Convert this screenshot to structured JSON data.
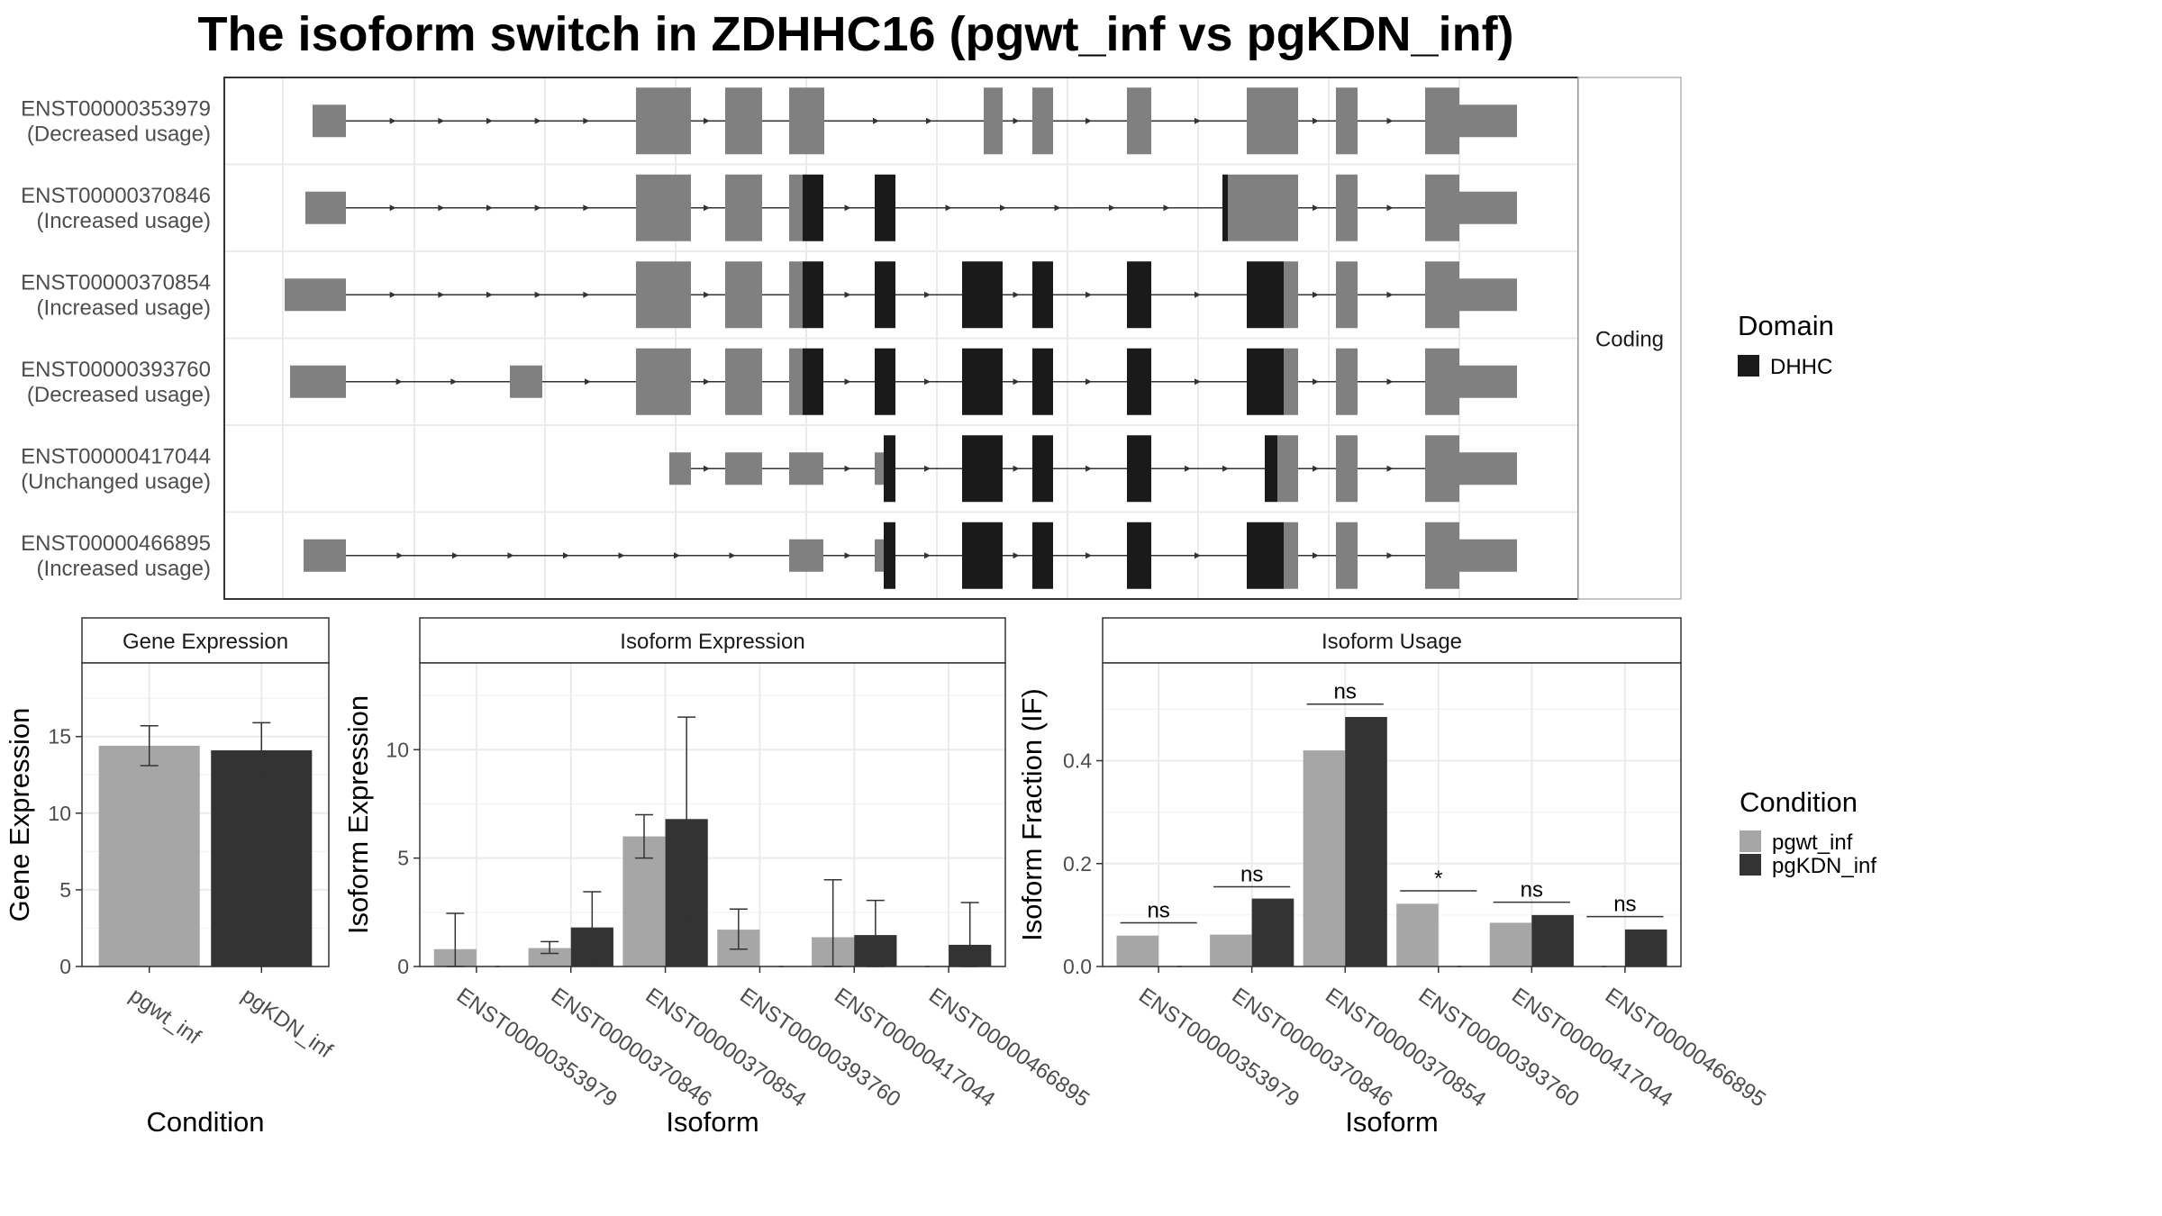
{
  "title": "The isoform switch in ZDHHC16 (pgwt_inf vs pgKDN_inf)",
  "colors": {
    "utr_or_noncoding": "#808080",
    "domain_dhhc": "#1a1a1a",
    "pgwt_inf": "#a6a6a6",
    "pgKDN_inf": "#333333",
    "strip_bg": "#ffffff",
    "grid": "#ebebeb",
    "panel_border": "#333333"
  },
  "transcript_panel": {
    "strip_label": "Coding",
    "rows": [
      {
        "id": "ENST00000353979",
        "usage": "(Decreased usage)"
      },
      {
        "id": "ENST00000370846",
        "usage": "(Increased usage)"
      },
      {
        "id": "ENST00000370854",
        "usage": "(Increased usage)"
      },
      {
        "id": "ENST00000393760",
        "usage": "(Decreased usage)"
      },
      {
        "id": "ENST00000417044",
        "usage": "(Unchanged usage)"
      },
      {
        "id": "ENST00000466895",
        "usage": "(Increased usage)"
      }
    ]
  },
  "domain_legend": {
    "title": "Domain",
    "items": [
      {
        "label": "DHHC",
        "color": "#1a1a1a"
      }
    ]
  },
  "condition_legend": {
    "title": "Condition",
    "items": [
      {
        "label": "pgwt_inf",
        "color": "#a6a6a6"
      },
      {
        "label": "pgKDN_inf",
        "color": "#333333"
      }
    ]
  },
  "chart_data": [
    {
      "type": "bar",
      "title": "Gene Expression",
      "xlabel": "Condition",
      "ylabel": "Gene Expression",
      "ylim": [
        0,
        19.8
      ],
      "yticks": [
        0,
        5,
        10,
        15
      ],
      "categories": [
        "pgwt_inf",
        "pgKDN_inf"
      ],
      "values": [
        14.4,
        14.1
      ],
      "error_low": [
        13.1,
        12.4
      ],
      "error_high": [
        15.7,
        15.9
      ],
      "grid": true
    },
    {
      "type": "bar",
      "title": "Isoform Expression",
      "xlabel": "Isoform",
      "ylabel": "Isoform Expression",
      "ylim": [
        0,
        14.0
      ],
      "yticks": [
        0,
        5,
        10
      ],
      "categories": [
        "ENST00000353979",
        "ENST00000370846",
        "ENST00000370854",
        "ENST00000393760",
        "ENST00000417044",
        "ENST00000466895"
      ],
      "series": [
        {
          "name": "pgwt_inf",
          "values": [
            0.8,
            0.85,
            6.0,
            1.7,
            1.35,
            0.0
          ],
          "error_low": [
            0.0,
            0.6,
            5.0,
            0.8,
            0.0,
            0.0
          ],
          "error_high": [
            2.45,
            1.15,
            7.0,
            2.65,
            4.0,
            0.0
          ]
        },
        {
          "name": "pgKDN_inf",
          "values": [
            0.0,
            1.8,
            6.8,
            0.0,
            1.45,
            1.0
          ],
          "error_low": [
            0.0,
            0.1,
            2.1,
            0.0,
            0.0,
            0.0
          ],
          "error_high": [
            0.0,
            3.45,
            11.5,
            0.0,
            3.05,
            2.95
          ]
        }
      ],
      "grid": true
    },
    {
      "type": "bar",
      "title": "Isoform Usage",
      "xlabel": "Isoform",
      "ylabel": "Isoform Fraction (IF)",
      "ylim": [
        0,
        0.59
      ],
      "yticks": [
        0.0,
        0.2,
        0.4
      ],
      "categories": [
        "ENST00000353979",
        "ENST00000370846",
        "ENST00000370854",
        "ENST00000393760",
        "ENST00000417044",
        "ENST00000466895"
      ],
      "series": [
        {
          "name": "pgwt_inf",
          "values": [
            0.06,
            0.062,
            0.42,
            0.122,
            0.085,
            0.0
          ]
        },
        {
          "name": "pgKDN_inf",
          "values": [
            0.0,
            0.132,
            0.485,
            0.0,
            0.1,
            0.072
          ]
        }
      ],
      "significance": [
        "ns",
        "ns",
        "ns",
        "*",
        "ns",
        "ns"
      ],
      "significance_y": [
        0.085,
        0.155,
        0.51,
        0.147,
        0.125,
        0.097
      ],
      "grid": true
    }
  ]
}
